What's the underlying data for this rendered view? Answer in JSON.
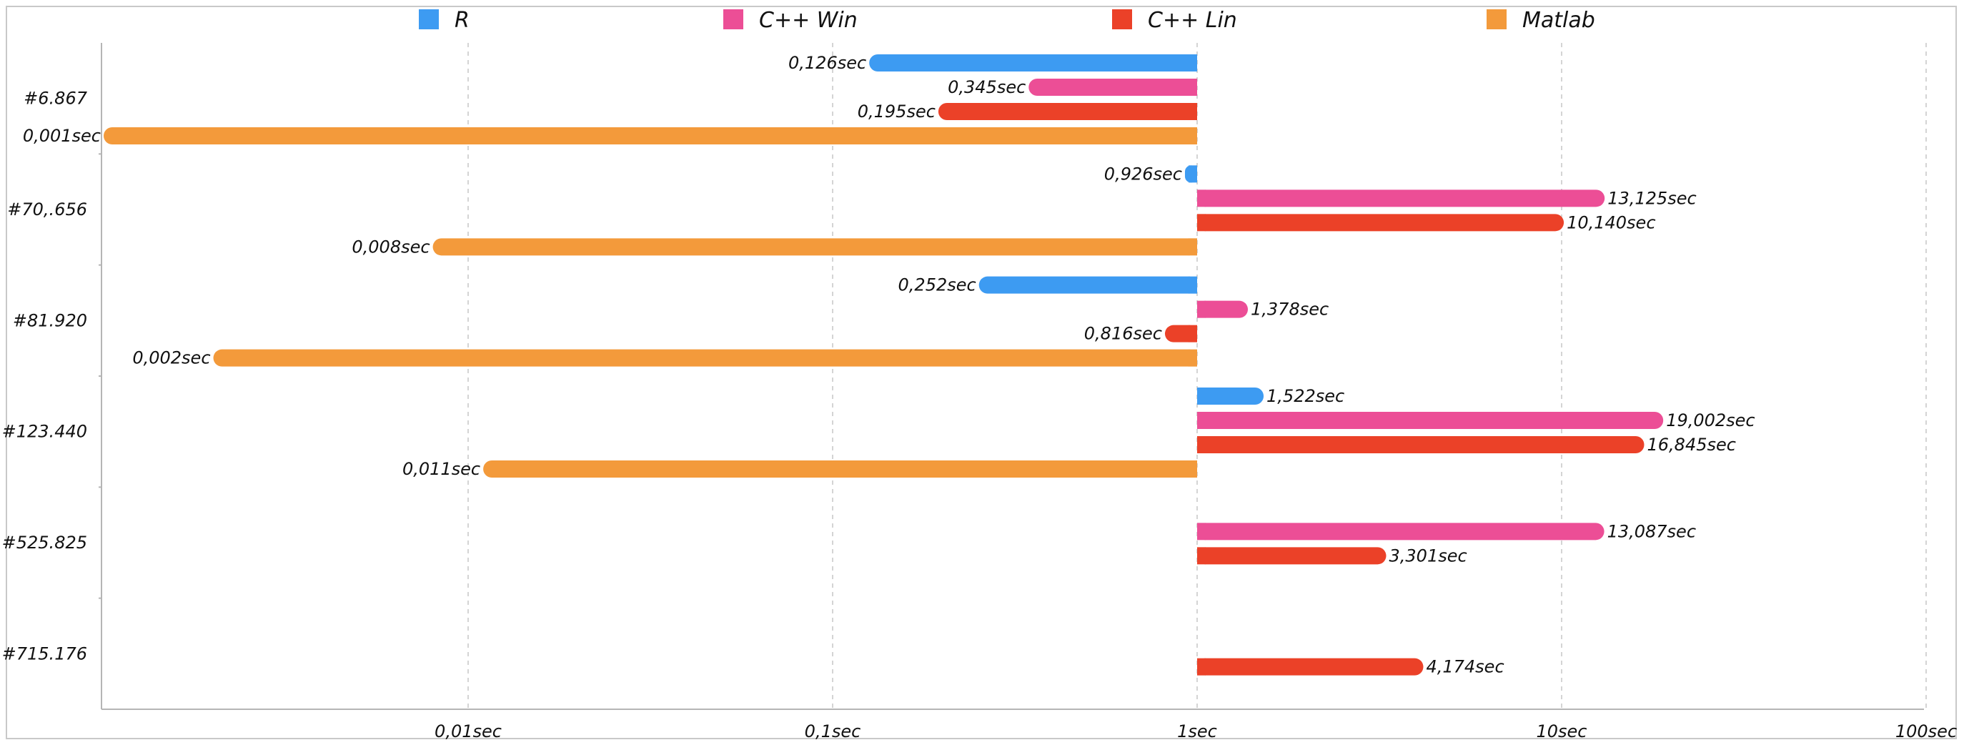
{
  "chart_data": {
    "type": "bar",
    "orientation": "horizontal",
    "x_scale": "log",
    "xlim": [
      0.00067,
      100
    ],
    "baseline": 1,
    "x_ticks": [
      {
        "value": 0.01,
        "label": "0,01sec"
      },
      {
        "value": 0.1,
        "label": "0,1sec"
      },
      {
        "value": 1,
        "label": "1sec"
      },
      {
        "value": 10,
        "label": "10sec"
      },
      {
        "value": 100,
        "label": "100sec"
      }
    ],
    "grid": "vertical dashed",
    "legend_position": "top",
    "categories": [
      "#6.867",
      "#70,.656",
      "#81.920",
      "#123.440",
      "#525.825",
      "#715.176"
    ],
    "series": [
      {
        "name": "R",
        "color": "#3d9bf2",
        "values": [
          0.126,
          0.926,
          0.252,
          1.522,
          null,
          null
        ],
        "labels": [
          "0,126sec",
          "0,926sec",
          "0,252sec",
          "1,522sec",
          null,
          null
        ]
      },
      {
        "name": "C++ Win",
        "color": "#ec4e96",
        "values": [
          0.345,
          13.125,
          1.378,
          19.002,
          13.087,
          null
        ],
        "labels": [
          "0,345sec",
          "13,125sec",
          "1,378sec",
          "19,002sec",
          "13,087sec",
          null
        ]
      },
      {
        "name": "C++ Lin",
        "color": "#eb4128",
        "values": [
          0.195,
          10.14,
          0.816,
          16.845,
          3.301,
          4.174
        ],
        "labels": [
          "0,195sec",
          "10,140sec",
          "0,816sec",
          "16,845sec",
          "3,301sec",
          "4,174sec"
        ]
      },
      {
        "name": "Matlab",
        "color": "#f39a3b",
        "values": [
          0.001,
          0.008,
          0.002,
          0.011,
          null,
          null
        ],
        "labels": [
          "0,001sec",
          "0,008sec",
          "0,002sec",
          "0,011sec",
          null,
          null
        ]
      }
    ]
  }
}
